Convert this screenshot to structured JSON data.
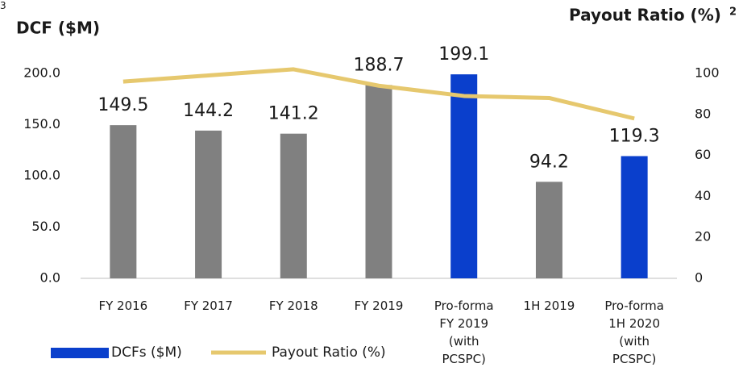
{
  "chart_data": {
    "type": "bar_line",
    "y_label": "DCF ($M)",
    "y2_label": "Payout Ratio (%)",
    "y2_label_note": "2",
    "categories": [
      "FY 2016",
      "FY 2017",
      "FY 2018",
      "FY 2019",
      "Pro-forma\nFY 2019\n(with\nPCSPC)",
      "1H 2019",
      "Pro-forma\n1H 2020\n(with\nPCSPC)"
    ],
    "category_note": "3",
    "series": [
      {
        "name": "DCFs ($M)",
        "type": "bar",
        "color": "#0a3fcc",
        "bar_colors": [
          "#808080",
          "#808080",
          "#808080",
          "#808080",
          "#0a3fcc",
          "#808080",
          "#0a3fcc"
        ],
        "values": [
          149.5,
          144.2,
          141.2,
          188.7,
          199.1,
          94.2,
          119.3
        ]
      },
      {
        "name": "Payout Ratio (%)",
        "type": "line",
        "axis": "y2",
        "color": "#e6c86e",
        "values": [
          96,
          99,
          102,
          94,
          89,
          88,
          78
        ]
      }
    ],
    "ylim": [
      0,
      200
    ],
    "yticks": [
      {
        "value": 0,
        "label": "0.0"
      },
      {
        "value": 50,
        "label": "50.0"
      },
      {
        "value": 100,
        "label": "100.0"
      },
      {
        "value": 150,
        "label": "150.0"
      },
      {
        "value": 200,
        "label": "200.0"
      }
    ],
    "y2lim": [
      0,
      100
    ],
    "y2ticks": [
      0,
      20,
      40,
      60,
      80,
      100
    ],
    "grid": false,
    "legend": "bottom-left"
  }
}
